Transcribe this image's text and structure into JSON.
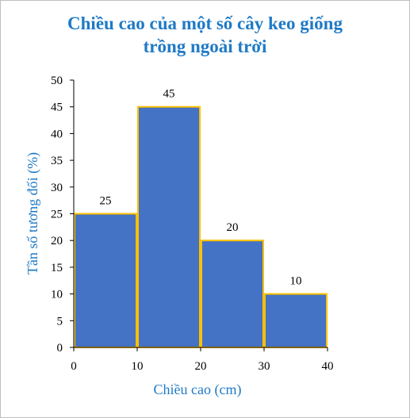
{
  "chart_data": {
    "type": "bar",
    "title_lines": [
      "Chiều cao của một số cây keo giống",
      "trồng ngoài trời"
    ],
    "xlabel": "Chiều cao (cm)",
    "ylabel": "Tần số tương đối (%)",
    "bins": [
      [
        0,
        10
      ],
      [
        10,
        20
      ],
      [
        20,
        30
      ],
      [
        30,
        40
      ]
    ],
    "values": [
      25,
      45,
      20,
      10
    ],
    "xticks": [
      0,
      10,
      20,
      30,
      40
    ],
    "yticks": [
      0,
      5,
      10,
      15,
      20,
      25,
      30,
      35,
      40,
      45,
      50
    ],
    "xlim": [
      0,
      40
    ],
    "ylim": [
      0,
      50
    ],
    "grid": false,
    "bar_fill": "#4472c4",
    "bar_edge": "#ffc000",
    "accent": "#1f7ac6"
  }
}
